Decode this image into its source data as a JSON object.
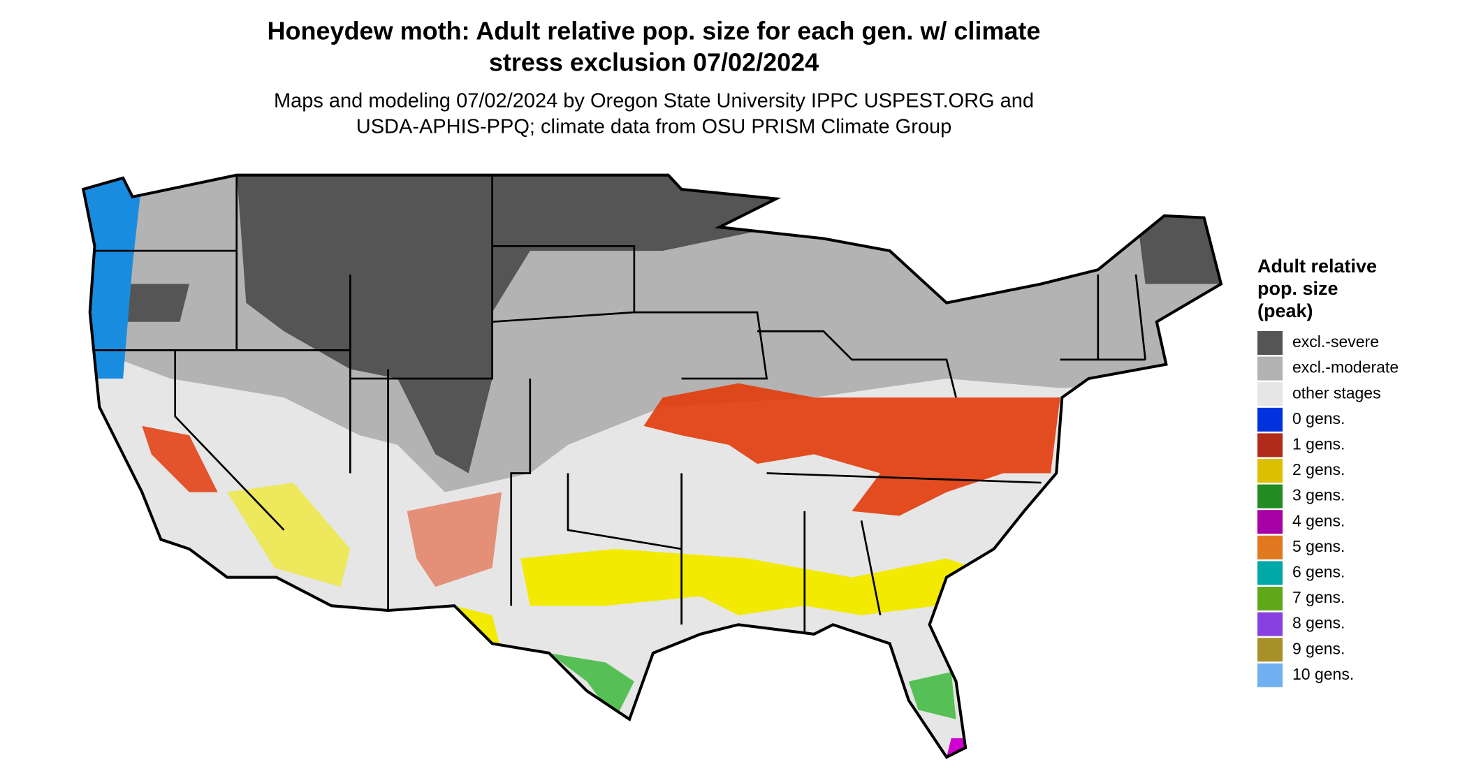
{
  "title": [
    "Honeydew moth: Adult relative pop. size for each gen. w/ climate",
    "stress exclusion 07/02/2024"
  ],
  "subtitle": [
    "Maps and modeling 07/02/2024 by Oregon State University IPPC USPEST.ORG and",
    "USDA-APHIS-PPQ; climate data from OSU PRISM Climate Group"
  ],
  "legend": {
    "title": [
      "Adult relative",
      "pop. size",
      "(peak)"
    ],
    "items": [
      {
        "label": "excl.-severe",
        "color": "#555555"
      },
      {
        "label": "excl.-moderate",
        "color": "#b3b3b3"
      },
      {
        "label": "other stages",
        "color": "#e6e6e6"
      },
      {
        "label": "0 gens.",
        "color": "#0033dd"
      },
      {
        "label": "1 gens.",
        "color": "#b22a1a"
      },
      {
        "label": "2 gens.",
        "color": "#dcc000"
      },
      {
        "label": "3 gens.",
        "color": "#228b22"
      },
      {
        "label": "4 gens.",
        "color": "#a600a6"
      },
      {
        "label": "5 gens.",
        "color": "#e07820"
      },
      {
        "label": "6 gens.",
        "color": "#00a8a8"
      },
      {
        "label": "7 gens.",
        "color": "#60a818"
      },
      {
        "label": "8 gens.",
        "color": "#8840e0"
      },
      {
        "label": "9 gens.",
        "color": "#a89028"
      },
      {
        "label": "10 gens.",
        "color": "#70b0f0"
      }
    ]
  }
}
